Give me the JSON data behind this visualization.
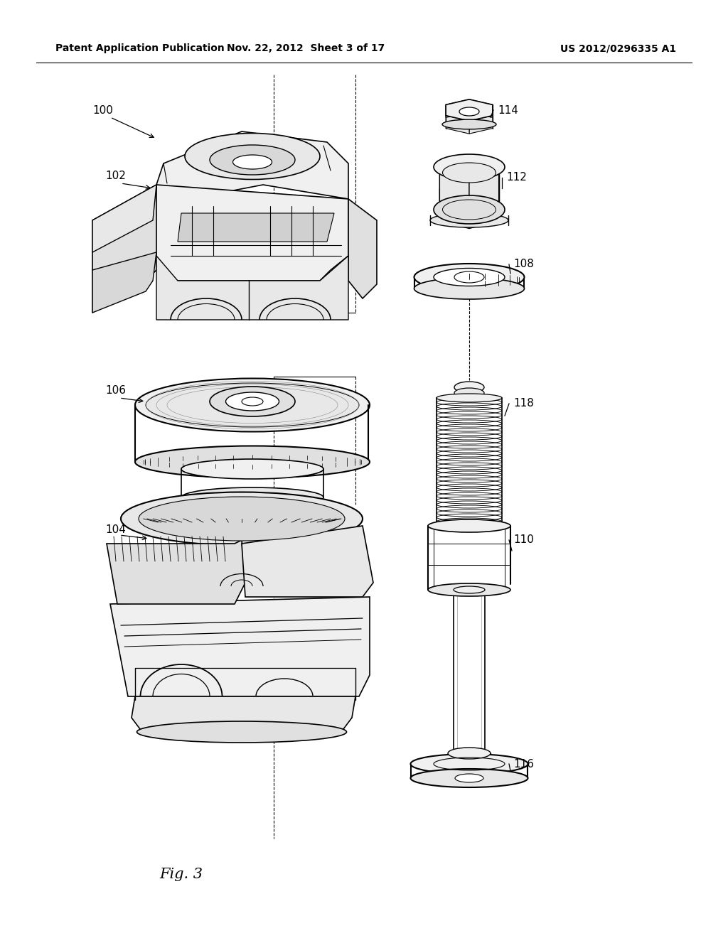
{
  "background_color": "#ffffff",
  "header_left": "Patent Application Publication",
  "header_middle": "Nov. 22, 2012  Sheet 3 of 17",
  "header_right": "US 2012/0296335 A1",
  "figure_label": "Fig. 3",
  "label_fontsize": 11,
  "fig_label_fontsize": 15,
  "header_fontsize": 10
}
